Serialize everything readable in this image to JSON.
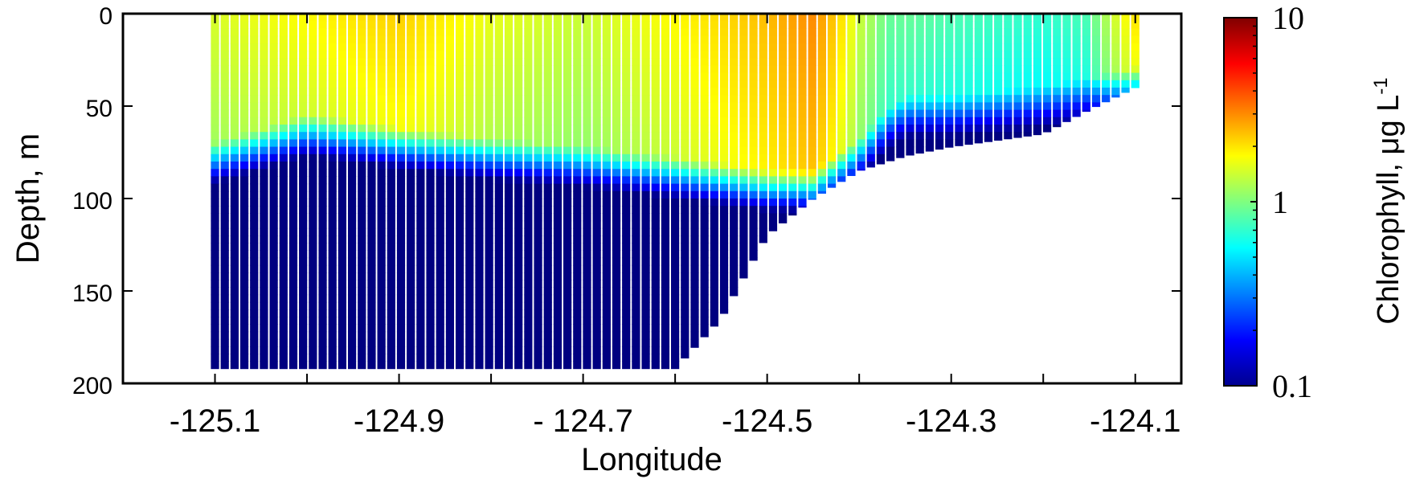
{
  "chart_data": {
    "type": "heatmap",
    "title": "",
    "xlabel": "Longitude",
    "ylabel": "Depth, m",
    "xlim": [
      -125.2,
      -124.05
    ],
    "ylim": [
      200,
      0
    ],
    "x_ticks": [
      -125.1,
      -124.9,
      -124.7,
      -124.5,
      -124.3,
      -124.1
    ],
    "x_tick_labels": [
      "-125.1",
      "-124.9",
      "- 124.7",
      "-124.5",
      "-124.3",
      "-124.1"
    ],
    "y_ticks": [
      0,
      50,
      100,
      150,
      200
    ],
    "y_tick_labels": [
      "0",
      "50",
      "100",
      "150",
      "200"
    ],
    "colorbar": {
      "label_main": "Chlorophyll, ",
      "label_unit": "μg L",
      "label_exp": "-1",
      "scale": "log",
      "range": [
        0.1,
        10
      ],
      "ticks": [
        0.1,
        1,
        10
      ],
      "tick_labels": [
        "0.1",
        "1",
        "10"
      ],
      "colormap": "jet"
    },
    "profile_columns": {
      "x_start": -125.1,
      "x_end": -124.1,
      "count": 95
    },
    "bottom_depth_profile": {
      "x": [
        -125.1,
        -124.6,
        -124.55,
        -124.5,
        -124.45,
        -124.4,
        -124.35,
        -124.3,
        -124.2,
        -124.15,
        -124.1
      ],
      "depth": [
        192,
        192,
        165,
        120,
        100,
        85,
        77,
        72,
        65,
        52,
        40
      ]
    },
    "chlorophyll_layer": {
      "x": [
        -125.1,
        -125.0,
        -124.9,
        -124.8,
        -124.7,
        -124.6,
        -124.5,
        -124.45,
        -124.4,
        -124.37,
        -124.35,
        -124.3,
        -124.2,
        -124.15,
        -124.1
      ],
      "surface_conc": [
        1.5,
        1.8,
        2.2,
        1.6,
        1.4,
        1.8,
        2.4,
        3.0,
        1.4,
        0.9,
        0.9,
        0.8,
        0.7,
        0.8,
        2.0
      ],
      "mixed_layer_bottom_depth": [
        80,
        65,
        72,
        78,
        82,
        88,
        95,
        95,
        78,
        62,
        55,
        55,
        50,
        45,
        40
      ]
    },
    "grid": false,
    "legend": "none"
  }
}
